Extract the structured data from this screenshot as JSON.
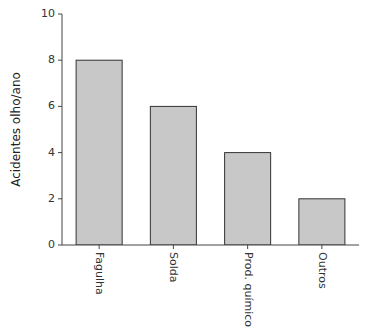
{
  "chart_data": {
    "type": "bar",
    "categories": [
      "Fagulha",
      "Solda",
      "Prod. químico",
      "Outros"
    ],
    "values": [
      8,
      6,
      4,
      2
    ],
    "color": "#c8c8c8",
    "ylabel": "Acidentes olho/ano",
    "ylim": [
      0,
      10
    ],
    "yticks": [
      0,
      2,
      4,
      6,
      8,
      10
    ],
    "grid": false
  }
}
